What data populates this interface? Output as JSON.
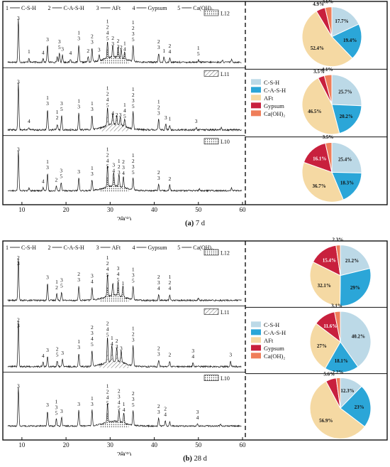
{
  "panels": [
    {
      "id": "a",
      "caption_letter": "(a)",
      "caption_text": "7 d",
      "x_axis_label": "2θ(°)",
      "x_ticks": [
        "10",
        "20",
        "30",
        "40",
        "50",
        "60"
      ],
      "xrd_legend": [
        {
          "num": "1",
          "name": "C-S-H"
        },
        {
          "num": "2",
          "name": "C-A-S-H"
        },
        {
          "num": "3",
          "name": "AFt"
        },
        {
          "num": "4",
          "name": "Gypsum"
        },
        {
          "num": "5",
          "name": "Ca(OH)₂"
        }
      ],
      "traces": [
        {
          "label": "L12",
          "pattern": "dots"
        },
        {
          "label": "L11",
          "pattern": "hatch"
        },
        {
          "label": "L10",
          "pattern": "dots"
        }
      ],
      "pie_legend": [
        "C-S-H",
        "C-A-S-H",
        "AFt",
        "Gypsum",
        "Ca(OH)₂"
      ],
      "peak_labels": [
        [
          {
            "x": 9.2,
            "lines": [
              "3"
            ]
          },
          {
            "x": 11.6,
            "lines": [
              "1"
            ]
          },
          {
            "x": 14.8,
            "lines": [
              "4"
            ]
          },
          {
            "x": 15.8,
            "lines": [
              "3"
            ]
          },
          {
            "x": 18.5,
            "lines": [
              "3",
              "5"
            ]
          },
          {
            "x": 19.2,
            "lines": [
              "3"
            ]
          },
          {
            "x": 21.0,
            "lines": [
              "4"
            ]
          },
          {
            "x": 22.9,
            "lines": [
              "1",
              "3"
            ]
          },
          {
            "x": 25.0,
            "lines": [
              "2"
            ]
          },
          {
            "x": 25.9,
            "lines": [
              "2",
              "3"
            ]
          },
          {
            "x": 27.5,
            "lines": [
              "3"
            ]
          },
          {
            "x": 29.4,
            "lines": [
              "1",
              "2",
              "4",
              "5"
            ]
          },
          {
            "x": 30.6,
            "lines": [
              "2",
              "3"
            ]
          },
          {
            "x": 31.8,
            "lines": [
              "2",
              "3"
            ]
          },
          {
            "x": 32.5,
            "lines": [
              "2"
            ]
          },
          {
            "x": 33.3,
            "lines": [
              "1",
              "4"
            ]
          },
          {
            "x": 35.2,
            "lines": [
              "1",
              "2",
              "3",
              "5"
            ]
          },
          {
            "x": 41.0,
            "lines": [
              "2",
              "3"
            ]
          },
          {
            "x": 42.2,
            "lines": [
              "1"
            ]
          },
          {
            "x": 43.5,
            "lines": [
              "2",
              "4"
            ]
          },
          {
            "x": 50.0,
            "lines": [
              "1",
              "5"
            ]
          }
        ],
        [
          {
            "x": 9.2,
            "lines": [
              "3"
            ]
          },
          {
            "x": 11.6,
            "lines": [
              "4"
            ]
          },
          {
            "x": 15.8,
            "lines": [
              "1",
              "3"
            ]
          },
          {
            "x": 18.0,
            "lines": [
              "1",
              "2"
            ]
          },
          {
            "x": 19.0,
            "lines": [
              "3",
              "5"
            ]
          },
          {
            "x": 22.9,
            "lines": [
              "1",
              "3"
            ]
          },
          {
            "x": 25.9,
            "lines": [
              "1",
              "3"
            ]
          },
          {
            "x": 29.4,
            "lines": [
              "1",
              "2",
              "4",
              "5"
            ]
          },
          {
            "x": 30.6,
            "lines": [
              "4"
            ]
          },
          {
            "x": 31.5,
            "lines": [
              "2"
            ]
          },
          {
            "x": 32.3,
            "lines": [
              "3"
            ]
          },
          {
            "x": 33.3,
            "lines": [
              "1",
              "4",
              "5"
            ]
          },
          {
            "x": 35.2,
            "lines": [
              "1",
              "2",
              "3",
              "5"
            ]
          },
          {
            "x": 41.0,
            "lines": [
              "1",
              "2",
              "3"
            ]
          },
          {
            "x": 42.6,
            "lines": [
              "3"
            ]
          },
          {
            "x": 43.5,
            "lines": [
              "1"
            ]
          },
          {
            "x": 49.5,
            "lines": [
              "3"
            ]
          }
        ],
        [
          {
            "x": 9.2,
            "lines": [
              "3"
            ]
          },
          {
            "x": 14.8,
            "lines": [
              "4"
            ]
          },
          {
            "x": 15.8,
            "lines": [
              "1",
              "3"
            ]
          },
          {
            "x": 17.8,
            "lines": [
              "2"
            ]
          },
          {
            "x": 18.9,
            "lines": [
              "3",
              "5"
            ]
          },
          {
            "x": 22.9,
            "lines": [
              "3"
            ]
          },
          {
            "x": 25.9,
            "lines": [
              "1",
              "3"
            ]
          },
          {
            "x": 29.4,
            "lines": [
              "1",
              "2",
              "4",
              "5"
            ]
          },
          {
            "x": 30.8,
            "lines": [
              "3",
              "4"
            ]
          },
          {
            "x": 32.0,
            "lines": [
              "1",
              "2",
              "3"
            ]
          },
          {
            "x": 33.0,
            "lines": [
              "2",
              "3",
              "4"
            ]
          },
          {
            "x": 35.2,
            "lines": [
              "1",
              "2",
              "3",
              "5"
            ]
          },
          {
            "x": 41.0,
            "lines": [
              "2",
              "3"
            ]
          },
          {
            "x": 43.5,
            "lines": [
              "2"
            ]
          }
        ]
      ]
    },
    {
      "id": "b",
      "caption_letter": "(b)",
      "caption_text": "28 d",
      "x_axis_label": "2θ(°)",
      "x_ticks": [
        "10",
        "20",
        "30",
        "40",
        "50",
        "60"
      ],
      "xrd_legend": [
        {
          "num": "1",
          "name": "C-S-H"
        },
        {
          "num": "2",
          "name": "C-A-S-H"
        },
        {
          "num": "3",
          "name": "AFt"
        },
        {
          "num": "4",
          "name": "Gypsum"
        },
        {
          "num": "5",
          "name": "Ca(OH)₂"
        }
      ],
      "traces": [
        {
          "label": "L12",
          "pattern": "dots"
        },
        {
          "label": "L11",
          "pattern": "hatch"
        },
        {
          "label": "L10",
          "pattern": "dots"
        }
      ],
      "pie_legend": [
        "C-S-H",
        "C-A-S-H",
        "AFt",
        "Gypsum",
        "Ca(OH)₂"
      ],
      "peak_labels": [
        [
          {
            "x": 9.2,
            "lines": [
              "2",
              "3"
            ]
          },
          {
            "x": 15.8,
            "lines": [
              "3"
            ]
          },
          {
            "x": 17.9,
            "lines": [
              "1",
              "2"
            ]
          },
          {
            "x": 19.0,
            "lines": [
              "3",
              "5"
            ]
          },
          {
            "x": 22.9,
            "lines": [
              "2",
              "3"
            ]
          },
          {
            "x": 25.9,
            "lines": [
              "3",
              "4"
            ]
          },
          {
            "x": 29.4,
            "lines": [
              "1",
              "2",
              "4",
              "5"
            ]
          },
          {
            "x": 31.8,
            "lines": [
              "3",
              "4",
              "5"
            ]
          },
          {
            "x": 32.9,
            "lines": [
              "1"
            ]
          },
          {
            "x": 35.2,
            "lines": [
              "1",
              "3",
              "5"
            ]
          },
          {
            "x": 41.0,
            "lines": [
              "2",
              "3",
              "4"
            ]
          },
          {
            "x": 43.5,
            "lines": [
              "1",
              "2",
              "4"
            ]
          }
        ],
        [
          {
            "x": 9.2,
            "lines": [
              "2",
              "3"
            ]
          },
          {
            "x": 14.8,
            "lines": [
              "4"
            ]
          },
          {
            "x": 15.8,
            "lines": [
              "3"
            ]
          },
          {
            "x": 18.0,
            "lines": [
              "2",
              "5"
            ]
          },
          {
            "x": 19.2,
            "lines": [
              "3"
            ]
          },
          {
            "x": 22.9,
            "lines": [
              "1",
              "3"
            ]
          },
          {
            "x": 25.9,
            "lines": [
              "2",
              "3",
              "4",
              "5"
            ]
          },
          {
            "x": 29.4,
            "lines": [
              "2",
              "4",
              "5"
            ]
          },
          {
            "x": 30.4,
            "lines": [
              "1",
              "4"
            ]
          },
          {
            "x": 31.5,
            "lines": [
              "2",
              "3"
            ]
          },
          {
            "x": 32.5,
            "lines": [
              "3"
            ]
          },
          {
            "x": 35.2,
            "lines": [
              "1",
              "2",
              "3"
            ]
          },
          {
            "x": 41.0,
            "lines": [
              "2",
              "3"
            ]
          },
          {
            "x": 43.5,
            "lines": [
              "2"
            ]
          },
          {
            "x": 48.8,
            "lines": [
              "3",
              "4"
            ]
          },
          {
            "x": 57.3,
            "lines": [
              "3"
            ]
          }
        ],
        [
          {
            "x": 9.2,
            "lines": [
              "3"
            ]
          },
          {
            "x": 15.8,
            "lines": [
              "3"
            ]
          },
          {
            "x": 17.8,
            "lines": [
              "1",
              "3",
              "5"
            ]
          },
          {
            "x": 19.0,
            "lines": [
              "3"
            ]
          },
          {
            "x": 22.9,
            "lines": [
              "3"
            ]
          },
          {
            "x": 25.9,
            "lines": [
              "1",
              "3"
            ]
          },
          {
            "x": 29.4,
            "lines": [
              "1",
              "2",
              "4",
              "5"
            ]
          },
          {
            "x": 32.0,
            "lines": [
              "2",
              "3",
              "4",
              "5"
            ]
          },
          {
            "x": 33.1,
            "lines": [
              "1",
              "4"
            ]
          },
          {
            "x": 35.2,
            "lines": [
              "2",
              "3",
              "5"
            ]
          },
          {
            "x": 41.0,
            "lines": [
              "2",
              "3"
            ]
          },
          {
            "x": 42.5,
            "lines": [
              "2",
              "4"
            ]
          },
          {
            "x": 49.8,
            "lines": [
              "3",
              "4"
            ]
          }
        ]
      ]
    }
  ],
  "colors": {
    "C-S-H": "#bcd9e7",
    "C-A-S-H": "#2ba6d8",
    "AFt": "#f5d9a3",
    "Gypsum": "#c8203d",
    "Ca(OH)2": "#ef7e5a"
  },
  "chart_data": [
    {
      "type": "line",
      "title": "(a) 7 d",
      "xlabel": "2θ(°)",
      "ylabel": "",
      "xlim": [
        6,
        60
      ],
      "series": [
        {
          "name": "L12"
        },
        {
          "name": "L11"
        },
        {
          "name": "L10"
        }
      ],
      "peaks_2theta": [
        9.2,
        11.6,
        14.8,
        15.8,
        18.5,
        19.2,
        21.0,
        22.9,
        25.0,
        25.9,
        27.5,
        29.4,
        30.6,
        31.8,
        32.5,
        33.3,
        35.2,
        41.0,
        42.2,
        43.5,
        50.0
      ]
    },
    {
      "type": "pie",
      "title": "L12 (7 d)",
      "categories": [
        "C-S-H",
        "C-A-S-H",
        "AFt",
        "Gypsum",
        "Ca(OH)2"
      ],
      "values": [
        17.7,
        19.4,
        52.4,
        4.9,
        3.6
      ],
      "labels": [
        "17.7%",
        "19.4%",
        "52.4%",
        "4.9%",
        "3.6%"
      ]
    },
    {
      "type": "pie",
      "title": "L11 (7 d)",
      "categories": [
        "C-S-H",
        "C-A-S-H",
        "AFt",
        "Gypsum",
        "Ca(OH)2"
      ],
      "values": [
        25.7,
        20.2,
        46.5,
        3.5,
        4.1
      ],
      "labels": [
        "25.7%",
        "20.2%",
        "46.5%",
        "3.5%",
        "4.1%"
      ]
    },
    {
      "type": "pie",
      "title": "L10 (7 d)",
      "categories": [
        "C-S-H",
        "C-A-S-H",
        "AFt",
        "Gypsum",
        "Ca(OH)2"
      ],
      "values": [
        25.4,
        18.3,
        36.7,
        16.1,
        3.5
      ],
      "labels": [
        "25.4%",
        "18.3%",
        "36.7%",
        "16.1%",
        "3.5%"
      ]
    },
    {
      "type": "line",
      "title": "(b) 28 d",
      "xlabel": "2θ(°)",
      "ylabel": "",
      "xlim": [
        6,
        60
      ],
      "series": [
        {
          "name": "L12"
        },
        {
          "name": "L11"
        },
        {
          "name": "L10"
        }
      ],
      "peaks_2theta": [
        9.2,
        14.8,
        15.8,
        17.9,
        19.0,
        22.9,
        25.9,
        29.4,
        30.4,
        31.5,
        32.5,
        33.1,
        35.2,
        41.0,
        42.5,
        43.5,
        48.8,
        49.8,
        57.3
      ]
    },
    {
      "type": "pie",
      "title": "L12 (28 d)",
      "categories": [
        "C-S-H",
        "C-A-S-H",
        "AFt",
        "Gypsum",
        "Ca(OH)2"
      ],
      "values": [
        21.2,
        29.0,
        32.1,
        15.4,
        2.3
      ],
      "labels": [
        "21.2%",
        "29%",
        "32.1%",
        "15.4%",
        "2.3%"
      ]
    },
    {
      "type": "pie",
      "title": "L11 (28 d)",
      "categories": [
        "C-S-H",
        "C-A-S-H",
        "AFt",
        "Gypsum",
        "Ca(OH)2"
      ],
      "values": [
        40.2,
        18.1,
        27.0,
        11.6,
        3.1
      ],
      "labels": [
        "40.2%",
        "18.1%",
        "27%",
        "11.6%",
        "3.1%"
      ]
    },
    {
      "type": "pie",
      "title": "L10 (28 d)",
      "categories": [
        "C-S-H",
        "C-A-S-H",
        "AFt",
        "Gypsum",
        "Ca(OH)2"
      ],
      "values": [
        12.3,
        23.0,
        56.9,
        5.6,
        2.2
      ],
      "labels": [
        "12.3%",
        "23%",
        "56.9%",
        "5.6%",
        "2.2%"
      ]
    }
  ]
}
